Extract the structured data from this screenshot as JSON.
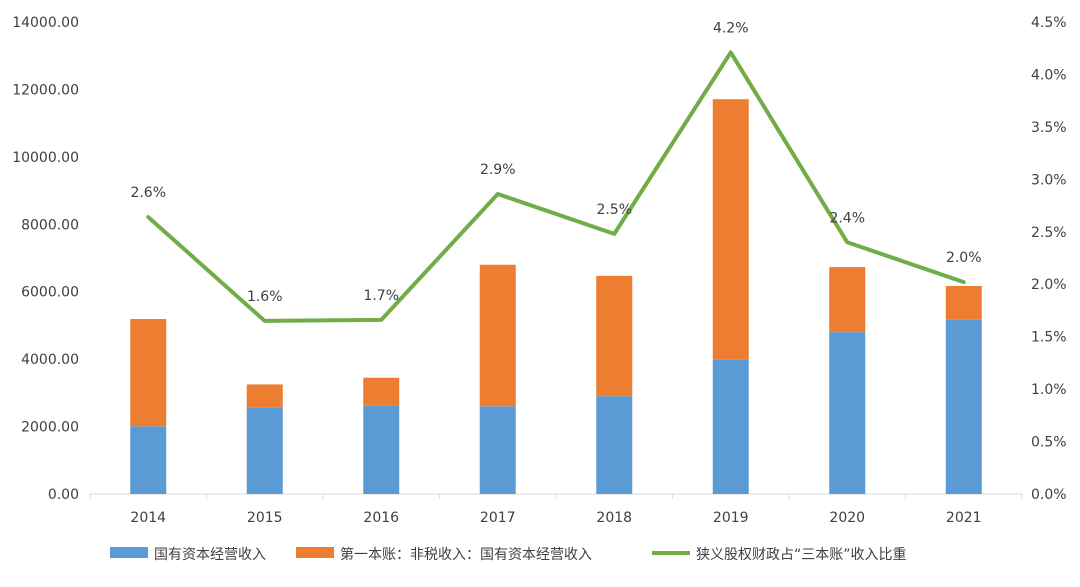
{
  "chart_data": {
    "type": "bar",
    "stacked": true,
    "categories": [
      "2014",
      "2015",
      "2016",
      "2017",
      "2018",
      "2019",
      "2020",
      "2021"
    ],
    "series": [
      {
        "name": "国有资本经营收入",
        "kind": "bar",
        "axis": "left",
        "color": "#5b9bd5",
        "values": [
          2010,
          2560,
          2620,
          2600,
          2900,
          3980,
          4800,
          5170
        ]
      },
      {
        "name": "第一本账：非税收入：国有资本经营收入",
        "kind": "bar",
        "axis": "left",
        "color": "#ed7d31",
        "values": [
          3180,
          690,
          830,
          4200,
          3570,
          7730,
          1930,
          1000
        ]
      },
      {
        "name": "狭义股权财政占“三本账”收入比重",
        "kind": "line",
        "axis": "right",
        "color": "#70ad47",
        "values": [
          2.64,
          1.65,
          1.66,
          2.86,
          2.48,
          4.21,
          2.4,
          2.02
        ],
        "labels": [
          "2.6%",
          "1.6%",
          "1.7%",
          "2.9%",
          "2.5%",
          "4.2%",
          "2.4%",
          "2.0%"
        ]
      }
    ],
    "y_left": {
      "ylim": [
        0,
        14000
      ],
      "ticks": [
        "0.00",
        "2000.00",
        "4000.00",
        "6000.00",
        "8000.00",
        "10000.00",
        "12000.00",
        "14000.00"
      ]
    },
    "y_right": {
      "ylim": [
        0,
        4.5
      ],
      "ticks": [
        "0.0%",
        "0.5%",
        "1.0%",
        "1.5%",
        "2.0%",
        "2.5%",
        "3.0%",
        "3.5%",
        "4.0%",
        "4.5%"
      ]
    },
    "grid": false,
    "legend": "bottom"
  }
}
